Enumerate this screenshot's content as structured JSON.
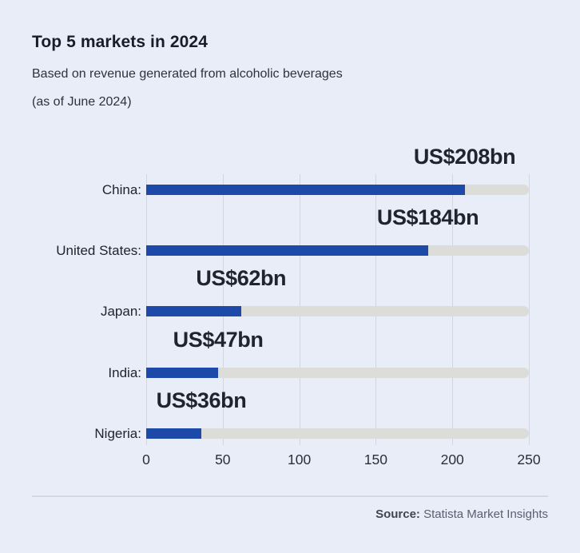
{
  "header": {
    "title": "Top 5 markets in 2024",
    "subtitle_line1": "Based on revenue generated from alcoholic beverages",
    "subtitle_line2": "(as of June 2024)"
  },
  "chart_data": {
    "type": "bar",
    "orientation": "horizontal",
    "title": "Top 5 markets in 2024",
    "subtitle": "Based on revenue generated from alcoholic beverages (as of June 2024)",
    "categories": [
      "China:",
      "United States:",
      "Japan:",
      "India:",
      "Nigeria:"
    ],
    "values": [
      208,
      184,
      62,
      47,
      36
    ],
    "value_labels": [
      "US$208bn",
      "US$184bn",
      "US$62bn",
      "US$47bn",
      "US$36bn"
    ],
    "unit": "US$ billion",
    "xlim": [
      0,
      250
    ],
    "x_ticks": [
      0,
      50,
      100,
      150,
      200,
      250
    ],
    "grid": true,
    "legend": "none",
    "bar_color": "#1d4aa9",
    "track_color": "#dcdcd8"
  },
  "footer": {
    "source_label": "Source:",
    "source_text": " Statista Market Insights"
  },
  "colors": {
    "background": "#e9edf8",
    "accent": "#1d4aa9",
    "track": "#dcdcd8",
    "gridline": "#d2d6e2",
    "divider": "#d5d8e1",
    "title_text": "#191d2b",
    "body_text": "#2c3240"
  }
}
